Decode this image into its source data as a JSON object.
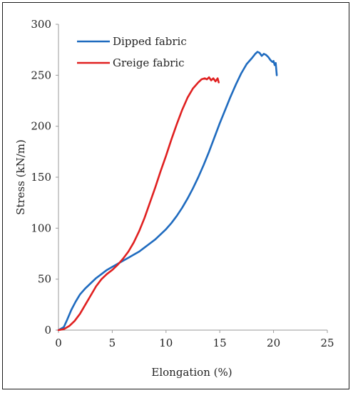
{
  "chart_data": {
    "type": "line",
    "title": "",
    "xlabel": "Elongation (%)",
    "ylabel": "Stress (kN/m)",
    "xlim": [
      0,
      25
    ],
    "ylim": [
      0,
      300
    ],
    "xticks": [
      0,
      5,
      10,
      15,
      20,
      25
    ],
    "yticks": [
      0,
      50,
      100,
      150,
      200,
      250,
      300
    ],
    "grid": false,
    "legend_position": "top-left",
    "series": [
      {
        "name": "Dipped fabric",
        "color": "#1f6bbf",
        "x": [
          0,
          0.5,
          0.8,
          1.2,
          1.6,
          2.0,
          2.5,
          3.0,
          3.5,
          4.0,
          4.5,
          5.0,
          5.5,
          6.0,
          6.5,
          7.0,
          7.5,
          8.0,
          8.5,
          9.0,
          9.5,
          10.0,
          10.5,
          11.0,
          11.5,
          12.0,
          12.5,
          13.0,
          13.5,
          14.0,
          14.5,
          15.0,
          15.5,
          16.0,
          16.5,
          17.0,
          17.5,
          18.0,
          18.3,
          18.5,
          18.7,
          18.9,
          19.1,
          19.3,
          19.5,
          19.7,
          19.9,
          20.0,
          20.1,
          20.2,
          20.25,
          20.3
        ],
        "y": [
          0,
          3,
          10,
          20,
          28,
          35,
          41,
          46,
          51,
          55,
          59,
          62,
          65,
          68,
          71,
          74,
          77,
          81,
          85,
          89,
          94,
          99,
          105,
          112,
          120,
          129,
          139,
          150,
          162,
          175,
          189,
          203,
          216,
          229,
          241,
          252,
          261,
          267,
          271,
          273,
          272,
          269,
          271,
          270,
          268,
          265,
          263,
          264,
          260,
          262,
          256,
          250
        ]
      },
      {
        "name": "Greige fabric",
        "color": "#e02020",
        "x": [
          0,
          0.5,
          1.0,
          1.5,
          2.0,
          2.5,
          3.0,
          3.5,
          4.0,
          4.5,
          5.0,
          5.5,
          6.0,
          6.5,
          7.0,
          7.5,
          8.0,
          8.5,
          9.0,
          9.5,
          10.0,
          10.5,
          11.0,
          11.5,
          12.0,
          12.5,
          13.0,
          13.3,
          13.6,
          13.8,
          14.0,
          14.2,
          14.4,
          14.6,
          14.8,
          14.9
        ],
        "y": [
          0,
          1,
          4,
          9,
          16,
          25,
          34,
          43,
          50,
          55,
          59,
          64,
          70,
          77,
          86,
          97,
          110,
          125,
          140,
          156,
          171,
          187,
          202,
          216,
          228,
          237,
          243,
          246,
          247,
          246,
          248,
          245,
          247,
          244,
          247,
          243
        ]
      }
    ]
  }
}
